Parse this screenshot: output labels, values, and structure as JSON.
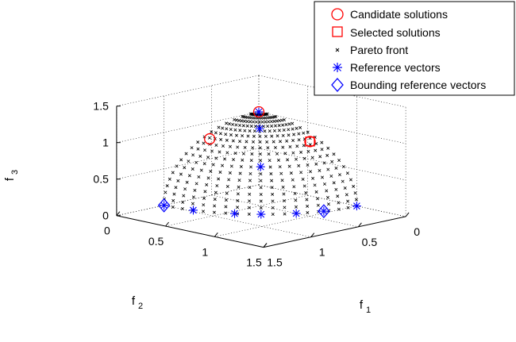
{
  "chart_data": {
    "type": "scatter",
    "projection": "3d",
    "title": "",
    "xlabel": "f",
    "xlabel_sub": "1",
    "ylabel": "f",
    "ylabel_sub": "2",
    "zlabel": "f",
    "zlabel_sub": "3",
    "xlim": [
      0,
      1.5
    ],
    "ylim": [
      0,
      1.5
    ],
    "zlim": [
      0,
      1.5
    ],
    "x_ticks": [
      "0",
      "0.5",
      "1",
      "1.5"
    ],
    "y_ticks": [
      "0",
      "0.5",
      "1",
      "1.5"
    ],
    "z_ticks": [
      "0",
      "0.5",
      "1",
      "1.5"
    ],
    "grid": true,
    "legend_position": "top-right",
    "legend": [
      {
        "label": "Candidate solutions",
        "marker": "circle",
        "color": "#ff0000"
      },
      {
        "label": "Selected solutions",
        "marker": "square",
        "color": "#ff0000"
      },
      {
        "label": "Pareto front",
        "marker": "x",
        "color": "#000000"
      },
      {
        "label": "Reference vectors",
        "marker": "asterisk",
        "color": "#0000ff"
      },
      {
        "label": "Bounding reference vectors",
        "marker": "diamond",
        "color": "#0000ff"
      }
    ],
    "series": [
      {
        "name": "Pareto front",
        "surface": "unit sphere octant (f1^2+f2^2+f3^2=1)",
        "elevation_step_deg": 5,
        "azimuth_step_deg": 5
      },
      {
        "name": "Reference vectors",
        "points": [
          [
            0,
            0,
            1
          ],
          [
            1,
            0,
            0
          ],
          [
            0,
            1,
            0
          ],
          [
            0.577,
            0.577,
            0.577
          ],
          [
            0.27,
            0.27,
            0.924
          ],
          [
            0.5,
            0.866,
            0.0
          ],
          [
            0.83,
            0.556,
            0.0
          ],
          [
            0.964,
            0.264,
            0.0
          ],
          [
            0.707,
            0.707,
            0.0
          ],
          [
            0.3,
            0.954,
            0.0
          ]
        ]
      },
      {
        "name": "Bounding reference vectors",
        "points": [
          [
            1,
            0,
            0
          ],
          [
            0.3,
            0.954,
            0.0
          ]
        ]
      },
      {
        "name": "Candidate solutions",
        "points": [
          [
            0,
            0,
            1
          ],
          [
            0.58,
            0.06,
            0.81
          ],
          [
            0.08,
            0.6,
            0.79
          ]
        ]
      },
      {
        "name": "Selected solutions",
        "points": [
          [
            0.08,
            0.6,
            0.79
          ]
        ]
      }
    ]
  }
}
